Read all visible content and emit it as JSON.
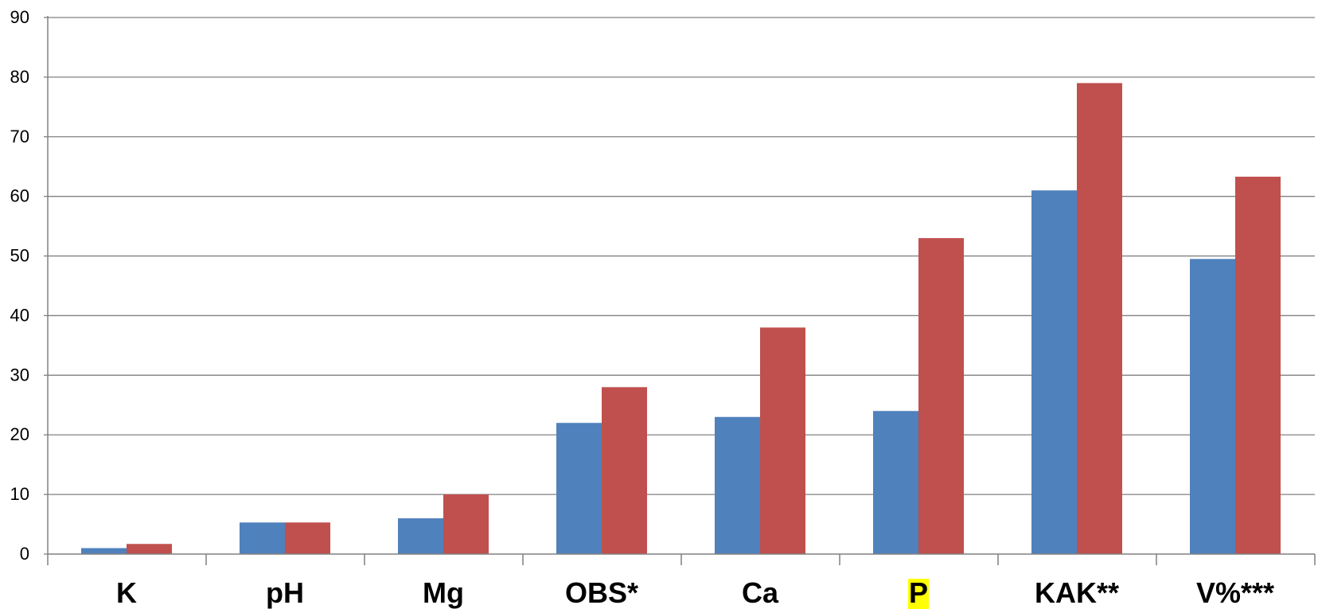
{
  "chart_data": {
    "type": "bar",
    "categories": [
      "K",
      "pH",
      "Mg",
      "OBS*",
      "Ca",
      "P",
      "KAK**",
      "V%***"
    ],
    "highlighted_category": "P",
    "highlight_color": "#ffff00",
    "series": [
      {
        "values": [
          1.0,
          5.3,
          6.0,
          22.0,
          23.0,
          24.0,
          61.0,
          49.5
        ],
        "color": "#4f81bd"
      },
      {
        "values": [
          1.7,
          5.3,
          10.0,
          28.0,
          38.0,
          53.0,
          79.0,
          63.3
        ],
        "color": "#c0504d"
      }
    ],
    "ylim": [
      0,
      90
    ],
    "yticks": [
      0,
      10,
      20,
      30,
      40,
      50,
      60,
      70,
      80,
      90
    ],
    "grid": true,
    "gridline_color": "#808080",
    "title": "",
    "xlabel": "",
    "ylabel": ""
  }
}
